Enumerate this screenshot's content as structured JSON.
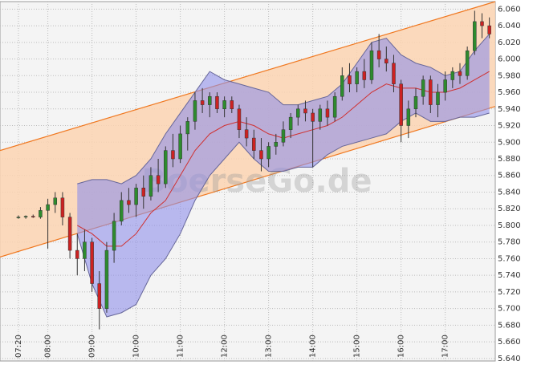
{
  "chart_data": {
    "type": "candlestick",
    "watermark": "BoerseGo.de",
    "up_color": "#2e8b2e",
    "down_color": "#cc2222",
    "x": [
      "07:20",
      "07:30",
      "07:40",
      "07:50",
      "08:00",
      "08:10",
      "08:20",
      "08:30",
      "08:40",
      "08:50",
      "09:00",
      "09:10",
      "09:20",
      "09:30",
      "09:40",
      "09:50",
      "10:00",
      "10:10",
      "10:20",
      "10:30",
      "10:40",
      "10:50",
      "11:00",
      "11:10",
      "11:20",
      "11:30",
      "11:40",
      "11:50",
      "12:00",
      "12:10",
      "12:20",
      "12:30",
      "12:40",
      "12:50",
      "13:00",
      "13:10",
      "13:20",
      "13:30",
      "13:40",
      "13:50",
      "14:00",
      "14:10",
      "14:20",
      "14:30",
      "14:40",
      "14:50",
      "15:00",
      "15:10",
      "15:20",
      "15:30",
      "15:40",
      "15:50",
      "16:00",
      "16:10",
      "16:20",
      "16:30",
      "16:40",
      "16:50",
      "17:00",
      "17:10",
      "17:20",
      "17:30",
      "17:40",
      "17:50",
      "18:00"
    ],
    "open": [
      5.81,
      5.81,
      5.811,
      5.81,
      5.818,
      5.825,
      5.833,
      5.81,
      5.77,
      5.76,
      5.78,
      5.73,
      5.7,
      5.77,
      5.805,
      5.83,
      5.825,
      5.845,
      5.835,
      5.86,
      5.85,
      5.89,
      5.88,
      5.91,
      5.925,
      5.95,
      5.945,
      5.955,
      5.94,
      5.95,
      5.94,
      5.915,
      5.905,
      5.89,
      5.88,
      5.895,
      5.9,
      5.915,
      5.93,
      5.94,
      5.935,
      5.925,
      5.94,
      5.93,
      5.955,
      5.98,
      5.97,
      5.985,
      5.975,
      6.01,
      6.0,
      5.995,
      5.97,
      5.92,
      5.94,
      5.955,
      5.975,
      5.945,
      5.96,
      5.975,
      5.985,
      5.98,
      6.01,
      6.045,
      6.04
    ],
    "high": [
      5.812,
      5.812,
      5.813,
      5.822,
      5.832,
      5.84,
      5.84,
      5.815,
      5.79,
      5.795,
      5.785,
      5.745,
      5.78,
      5.815,
      5.84,
      5.845,
      5.85,
      5.86,
      5.87,
      5.88,
      5.895,
      5.91,
      5.92,
      5.93,
      5.96,
      5.965,
      5.96,
      5.96,
      5.955,
      5.955,
      5.945,
      5.93,
      5.915,
      5.905,
      5.9,
      5.91,
      5.925,
      5.935,
      5.945,
      5.95,
      5.94,
      5.945,
      5.95,
      5.96,
      5.99,
      5.995,
      5.99,
      6.0,
      6.02,
      6.03,
      6.015,
      6.005,
      5.975,
      5.95,
      5.965,
      5.98,
      5.98,
      5.97,
      5.985,
      5.99,
      5.995,
      6.015,
      6.058,
      6.055,
      6.05
    ],
    "low": [
      5.808,
      5.808,
      5.809,
      5.808,
      5.772,
      5.815,
      5.8,
      5.76,
      5.74,
      5.745,
      5.72,
      5.675,
      5.695,
      5.755,
      5.8,
      5.815,
      5.81,
      5.82,
      5.83,
      5.84,
      5.845,
      5.87,
      5.875,
      5.89,
      5.915,
      5.935,
      5.93,
      5.935,
      5.93,
      5.935,
      5.905,
      5.895,
      5.88,
      5.865,
      5.87,
      5.885,
      5.895,
      5.905,
      5.92,
      5.925,
      5.87,
      5.915,
      5.92,
      5.925,
      5.95,
      5.96,
      5.96,
      5.965,
      5.97,
      5.99,
      5.985,
      5.96,
      5.9,
      5.905,
      5.93,
      5.945,
      5.935,
      5.93,
      5.95,
      5.965,
      5.97,
      5.975,
      6.005,
      6.025,
      6.025
    ],
    "close": [
      5.81,
      5.811,
      5.81,
      5.818,
      5.825,
      5.833,
      5.81,
      5.77,
      5.76,
      5.78,
      5.73,
      5.7,
      5.77,
      5.805,
      5.83,
      5.825,
      5.845,
      5.835,
      5.86,
      5.85,
      5.89,
      5.88,
      5.91,
      5.925,
      5.95,
      5.945,
      5.955,
      5.94,
      5.95,
      5.94,
      5.915,
      5.905,
      5.89,
      5.88,
      5.895,
      5.9,
      5.915,
      5.93,
      5.94,
      5.935,
      5.925,
      5.94,
      5.93,
      5.955,
      5.98,
      5.97,
      5.985,
      5.975,
      6.01,
      6.0,
      5.995,
      5.97,
      5.92,
      5.94,
      5.955,
      5.975,
      5.945,
      5.96,
      5.975,
      5.985,
      5.98,
      6.01,
      6.045,
      6.04,
      6.03
    ],
    "bands": {
      "x": [
        "08:40",
        "09:00",
        "09:20",
        "09:40",
        "10:00",
        "10:20",
        "10:40",
        "11:00",
        "11:20",
        "11:40",
        "12:00",
        "12:20",
        "12:40",
        "13:00",
        "13:20",
        "13:40",
        "14:00",
        "14:20",
        "14:40",
        "15:00",
        "15:20",
        "15:40",
        "16:00",
        "16:20",
        "16:40",
        "17:00",
        "17:20",
        "17:40",
        "18:00"
      ],
      "upper": [
        5.85,
        5.855,
        5.855,
        5.85,
        5.86,
        5.88,
        5.91,
        5.935,
        5.96,
        5.985,
        5.975,
        5.97,
        5.965,
        5.96,
        5.945,
        5.945,
        5.95,
        5.955,
        5.97,
        5.995,
        6.02,
        6.025,
        6.005,
        5.995,
        5.99,
        5.98,
        5.985,
        6.01,
        6.03
      ],
      "middle": [
        5.8,
        5.79,
        5.775,
        5.775,
        5.79,
        5.815,
        5.83,
        5.86,
        5.89,
        5.91,
        5.92,
        5.925,
        5.92,
        5.91,
        5.905,
        5.91,
        5.915,
        5.92,
        5.93,
        5.945,
        5.96,
        5.97,
        5.965,
        5.965,
        5.96,
        5.96,
        5.965,
        5.975,
        5.985
      ],
      "lower": [
        5.79,
        5.73,
        5.69,
        5.695,
        5.705,
        5.74,
        5.76,
        5.79,
        5.83,
        5.86,
        5.88,
        5.9,
        5.88,
        5.865,
        5.865,
        5.87,
        5.87,
        5.885,
        5.895,
        5.9,
        5.905,
        5.91,
        5.925,
        5.935,
        5.925,
        5.925,
        5.93,
        5.93,
        5.935
      ],
      "fill": "#8f8fea",
      "line_color": "#666699",
      "middle_color": "#d03030"
    },
    "channel": {
      "x": [
        "06:55",
        "18:08"
      ],
      "upper": [
        5.89,
        6.069
      ],
      "lower": [
        5.762,
        5.943
      ],
      "fill": "#fbd3b2",
      "line_color": "#f07820"
    },
    "xlim": [
      "06:55",
      "18:08"
    ],
    "ylim": [
      5.637,
      6.069
    ],
    "xticks": [
      "07:20",
      "08:00",
      "09:00",
      "10:00",
      "11:00",
      "12:00",
      "13:00",
      "14:00",
      "15:00",
      "16:00",
      "17:00"
    ],
    "yticks": [
      {
        "value": 5.64,
        "label": "5.640"
      },
      {
        "value": 5.66,
        "label": "5.660"
      },
      {
        "value": 5.68,
        "label": "5.680"
      },
      {
        "value": 5.7,
        "label": "5.700"
      },
      {
        "value": 5.72,
        "label": "5.720"
      },
      {
        "value": 5.74,
        "label": "5.740"
      },
      {
        "value": 5.76,
        "label": "5.760"
      },
      {
        "value": 5.78,
        "label": "5.780"
      },
      {
        "value": 5.8,
        "label": "5.800"
      },
      {
        "value": 5.82,
        "label": "5.820"
      },
      {
        "value": 5.84,
        "label": "5.840"
      },
      {
        "value": 5.86,
        "label": "5.860"
      },
      {
        "value": 5.88,
        "label": "5.880"
      },
      {
        "value": 5.9,
        "label": "5.900"
      },
      {
        "value": 5.92,
        "label": "5.920"
      },
      {
        "value": 5.94,
        "label": "5.940"
      },
      {
        "value": 5.96,
        "label": "5.960"
      },
      {
        "value": 5.98,
        "label": "5.980"
      },
      {
        "value": 6.0,
        "label": "6.000"
      },
      {
        "value": 6.02,
        "label": "6.020"
      },
      {
        "value": 6.04,
        "label": "6.040"
      },
      {
        "value": 6.06,
        "label": "6.060"
      }
    ],
    "grid": true
  }
}
